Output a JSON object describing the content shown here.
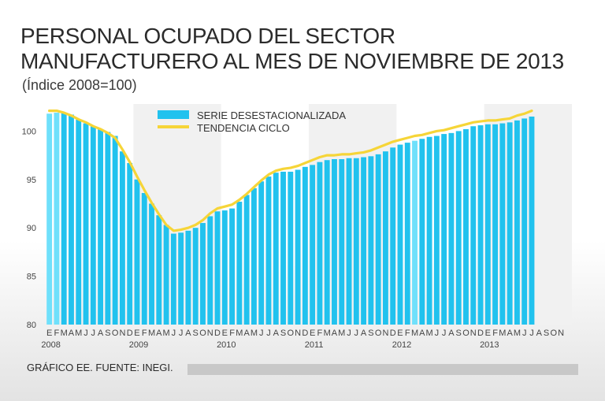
{
  "title_line1": "PERSONAL OCUPADO DEL SECTOR",
  "title_line2": "MANUFACTURERO AL MES DE NOVIEMBRE DE 2013",
  "subtitle": "(Índice 2008=100)",
  "source": "GRÁFICO EE. FUENTE: INEGI.",
  "colors": {
    "bar": "#21c2ee",
    "bar_highlight": "#6fe0fb",
    "line": "#f6d538",
    "band": "#f1f1f1",
    "axis_text": "#444444"
  },
  "chart_data": {
    "type": "bar",
    "title": "PERSONAL OCUPADO DEL SECTOR MANUFACTURERO AL MES DE NOVIEMBRE DE 2013",
    "ylabel": "Índice 2008=100",
    "ylim": [
      80,
      102.8
    ],
    "yticks": [
      80,
      85,
      90,
      95,
      100
    ],
    "month_labels": [
      "E",
      "F",
      "M",
      "A",
      "M",
      "J",
      "J",
      "A",
      "S",
      "O",
      "N",
      "D"
    ],
    "years": [
      "2008",
      "2009",
      "2010",
      "2011",
      "2012",
      "2013"
    ],
    "legend": [
      "SERIE DESESTACIONALIZADA",
      "TENDENCIA CICLO"
    ],
    "series": [
      {
        "name": "SERIE DESESTACIONALIZADA",
        "type": "bar",
        "values": [
          101.8,
          101.9,
          101.9,
          101.7,
          101.2,
          100.8,
          100.5,
          100.2,
          99.9,
          99.5,
          97.9,
          96.7,
          95.0,
          93.6,
          92.5,
          91.3,
          90.3,
          89.4,
          89.5,
          89.7,
          90.0,
          90.5,
          91.2,
          91.7,
          91.8,
          92.0,
          92.7,
          93.4,
          94.1,
          94.8,
          95.3,
          95.7,
          95.8,
          95.8,
          96.0,
          96.3,
          96.5,
          96.8,
          97.0,
          97.1,
          97.1,
          97.2,
          97.2,
          97.3,
          97.4,
          97.6,
          97.9,
          98.3,
          98.6,
          98.8,
          99.0,
          99.2,
          99.4,
          99.5,
          99.7,
          99.8,
          100.0,
          100.2,
          100.5,
          100.6,
          100.7,
          100.7,
          100.8,
          100.9,
          101.1,
          101.3,
          101.5
        ]
      },
      {
        "name": "TENDENCIA CICLO",
        "type": "line",
        "values": [
          102.1,
          102.1,
          101.9,
          101.6,
          101.2,
          100.9,
          100.5,
          100.2,
          99.8,
          99.3,
          98.1,
          96.8,
          95.3,
          93.9,
          92.6,
          91.4,
          90.3,
          89.7,
          89.8,
          90.0,
          90.3,
          90.8,
          91.5,
          92.0,
          92.2,
          92.4,
          92.9,
          93.5,
          94.2,
          94.9,
          95.5,
          95.9,
          96.1,
          96.2,
          96.4,
          96.7,
          97.0,
          97.3,
          97.5,
          97.5,
          97.6,
          97.6,
          97.7,
          97.8,
          98.0,
          98.3,
          98.6,
          98.9,
          99.1,
          99.3,
          99.5,
          99.6,
          99.8,
          100.0,
          100.1,
          100.3,
          100.5,
          100.7,
          100.9,
          101.0,
          101.1,
          101.1,
          101.2,
          101.3,
          101.6,
          101.8,
          102.1
        ]
      }
    ]
  }
}
